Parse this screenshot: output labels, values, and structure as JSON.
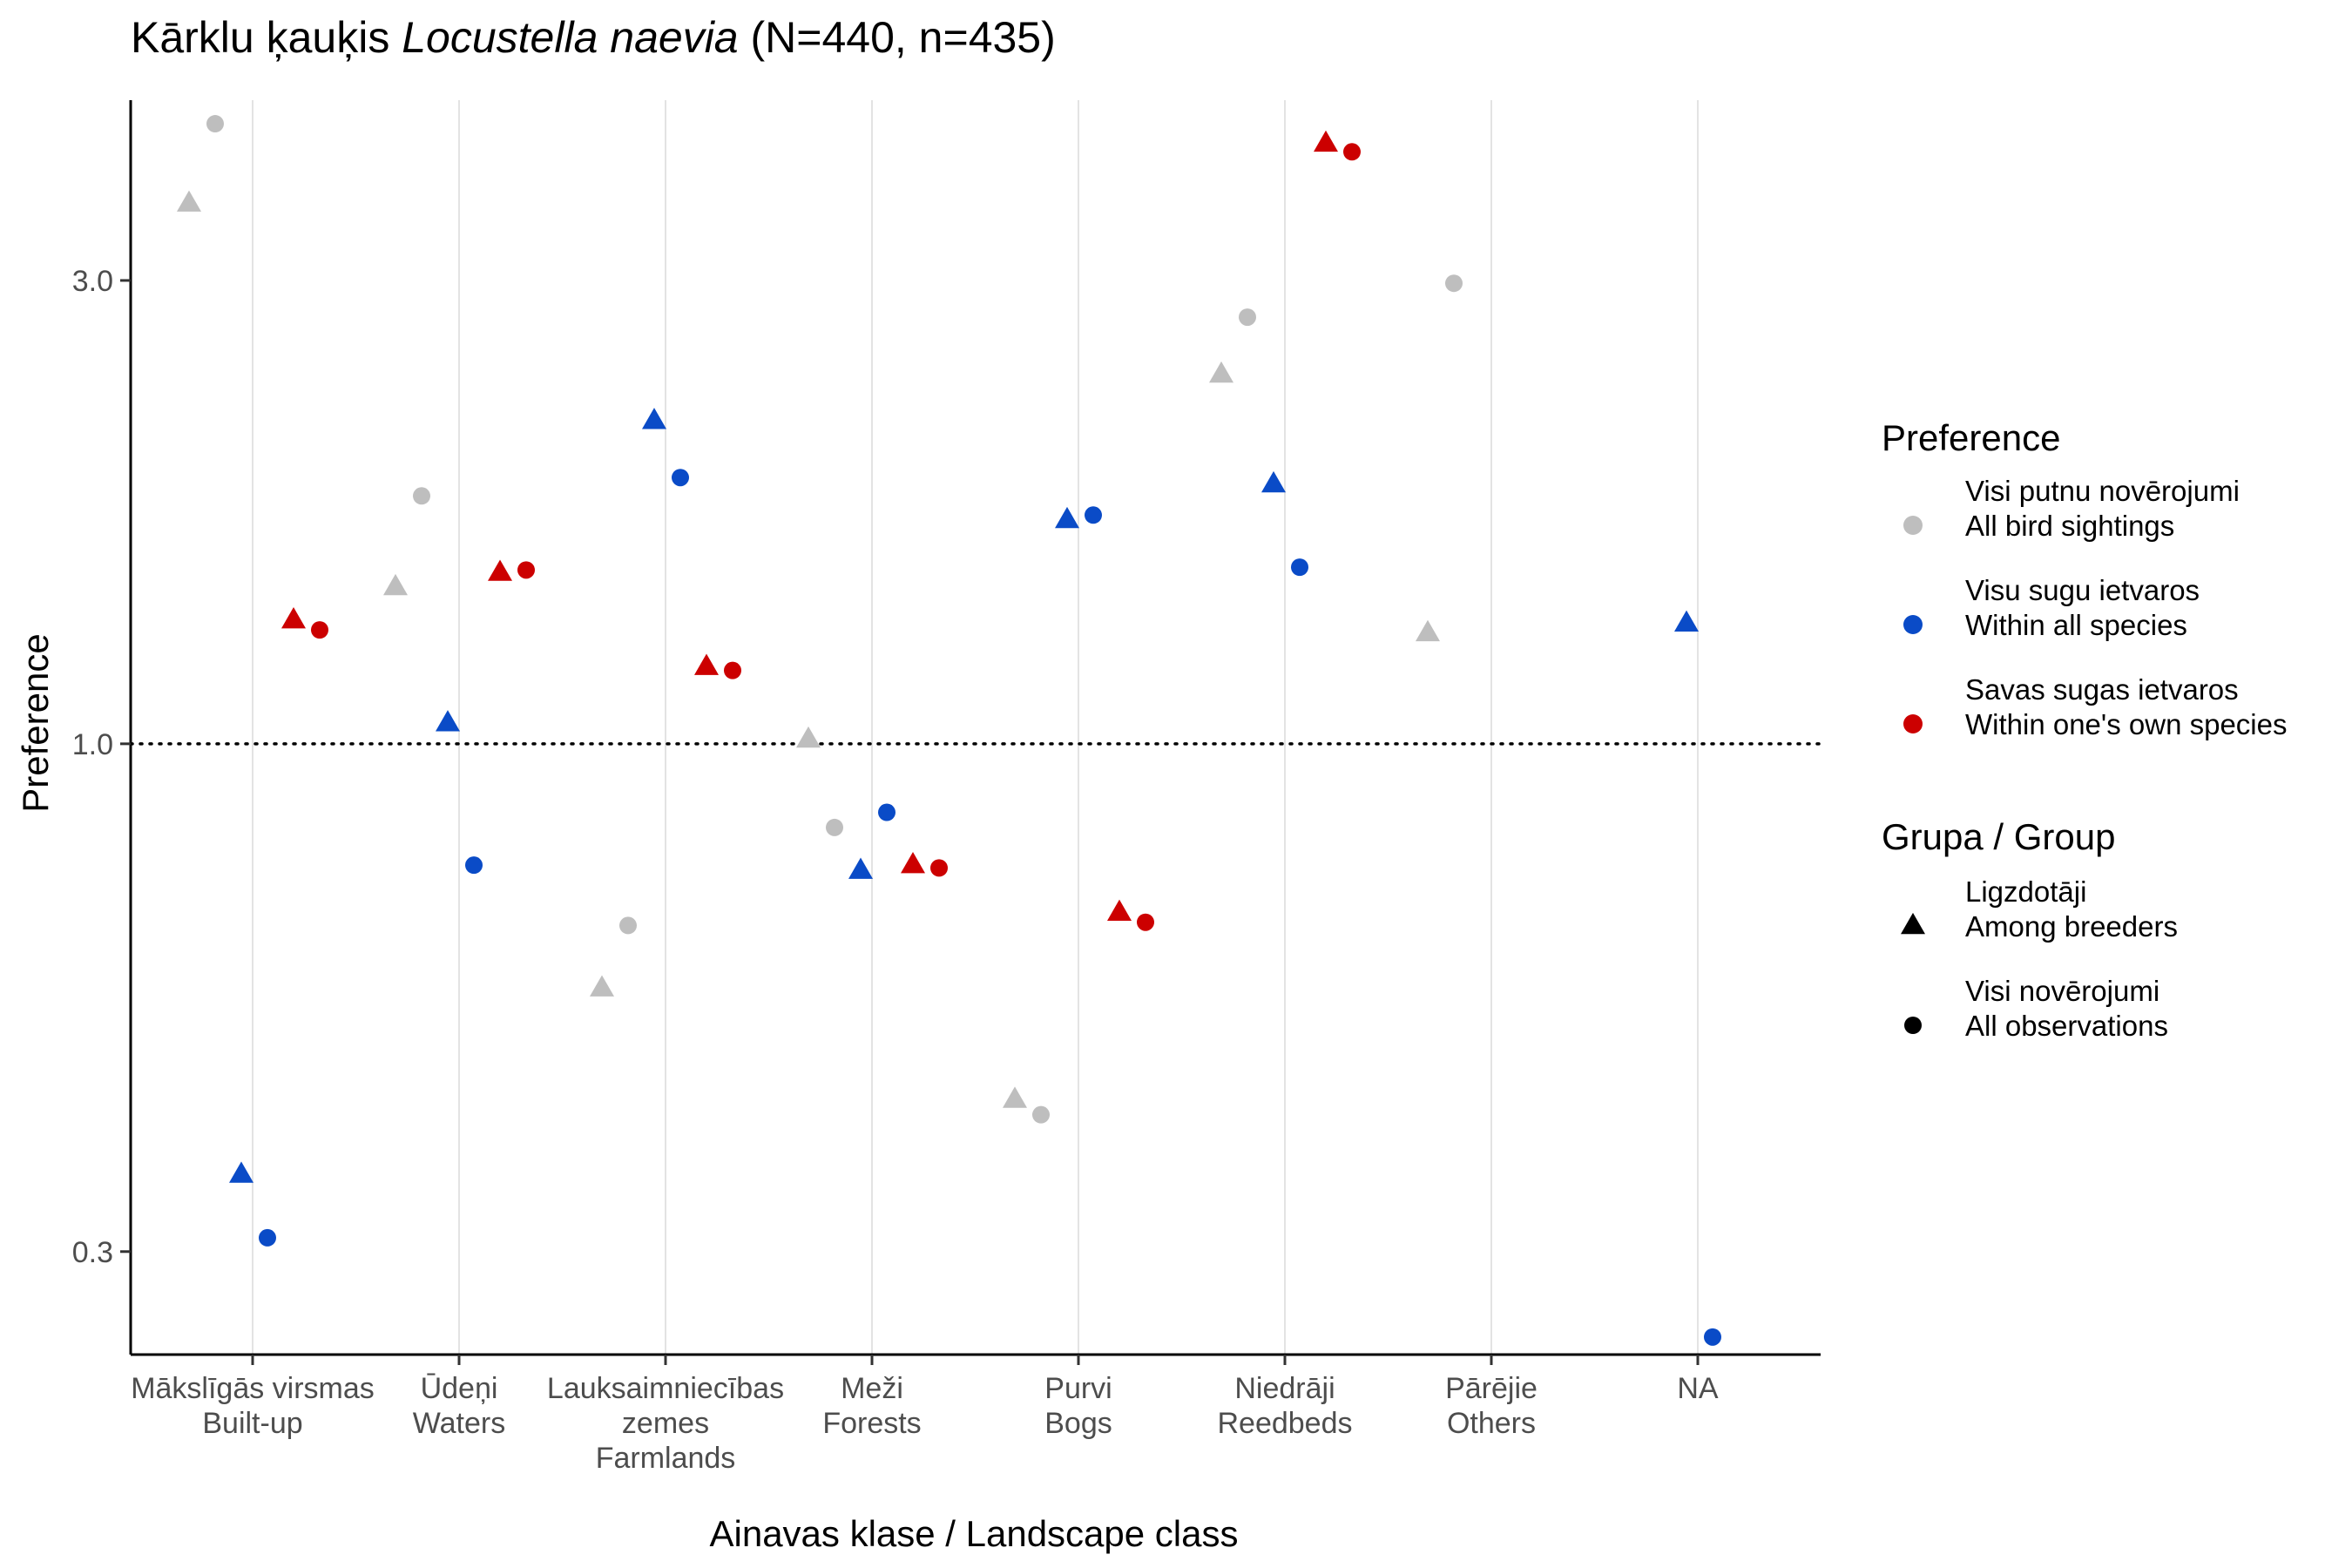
{
  "chart_data": {
    "type": "scatter",
    "title": {
      "prefix": "Kārklu ķauķis ",
      "species": "Locustella naevia",
      "suffix": " (N=440, n=435)"
    },
    "xlabel": "Ainavas klase / Landscape class",
    "ylabel": "Preference",
    "y_scale": "log",
    "ylim": [
      0.235,
      4.6
    ],
    "y_ticks": [
      {
        "value": 0.3,
        "label": "0.3"
      },
      {
        "value": 1.0,
        "label": "1.0"
      },
      {
        "value": 3.0,
        "label": "3.0"
      }
    ],
    "reference_line": {
      "value": 1.0,
      "style": "dotted"
    },
    "grid": "vertical-major",
    "categories": [
      {
        "key": "built_up",
        "lines": [
          "Mākslīgās virsmas",
          "Built-up"
        ]
      },
      {
        "key": "waters",
        "lines": [
          "Ūdeņi",
          "Waters"
        ]
      },
      {
        "key": "farmlands",
        "lines": [
          "Lauksaimniecības",
          "zemes",
          "Farmlands"
        ]
      },
      {
        "key": "forests",
        "lines": [
          "Meži",
          "Forests"
        ]
      },
      {
        "key": "bogs",
        "lines": [
          "Purvi",
          "Bogs"
        ]
      },
      {
        "key": "reedbeds",
        "lines": [
          "Niedrāji",
          "Reedbeds"
        ]
      },
      {
        "key": "others",
        "lines": [
          "Pārējie",
          "Others"
        ]
      },
      {
        "key": "na",
        "lines": [
          "NA"
        ]
      }
    ],
    "legend": {
      "position": "right",
      "preference": {
        "title": "Preference",
        "items": [
          {
            "key": "all_sightings",
            "color": "#bebebe",
            "lines": [
              "Visi putnu novērojumi",
              "All bird sightings"
            ]
          },
          {
            "key": "within_all",
            "color": "#0a4bc7",
            "lines": [
              "Visu sugu ietvaros",
              "Within all species"
            ]
          },
          {
            "key": "within_own",
            "color": "#cc0000",
            "lines": [
              "Savas sugas ietvaros",
              "Within one's own species"
            ]
          }
        ]
      },
      "group": {
        "title": "Grupa / Group",
        "items": [
          {
            "key": "breeders",
            "shape": "triangle",
            "lines": [
              "Ligzdotāji",
              "Among breeders"
            ]
          },
          {
            "key": "all_obs",
            "shape": "circle",
            "lines": [
              "Visi novērojumi",
              "All observations"
            ]
          }
        ]
      }
    },
    "series": [
      {
        "preference": "all_sightings",
        "group": "breeders",
        "values": [
          3.6,
          1.45,
          0.56,
          1.01,
          0.43,
          2.4,
          1.3,
          null
        ]
      },
      {
        "preference": "all_sightings",
        "group": "all_obs",
        "values": [
          4.35,
          1.8,
          0.65,
          0.82,
          0.415,
          2.75,
          2.98,
          null
        ]
      },
      {
        "preference": "within_all",
        "group": "breeders",
        "values": [
          0.36,
          1.05,
          2.15,
          0.74,
          1.7,
          1.85,
          null,
          1.33
        ]
      },
      {
        "preference": "within_all",
        "group": "all_obs",
        "values": [
          0.31,
          0.75,
          1.88,
          0.85,
          1.72,
          1.52,
          null,
          0.245
        ]
      },
      {
        "preference": "within_own",
        "group": "breeders",
        "values": [
          1.34,
          1.5,
          1.2,
          0.75,
          0.67,
          4.15,
          null,
          null
        ]
      },
      {
        "preference": "within_own",
        "group": "all_obs",
        "values": [
          1.31,
          1.51,
          1.19,
          0.745,
          0.655,
          4.07,
          null,
          null
        ]
      }
    ]
  }
}
